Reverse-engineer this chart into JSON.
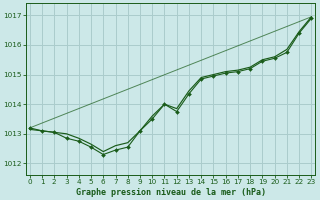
{
  "title": "Graphe pression niveau de la mer (hPa)",
  "bg_color": "#cce8e8",
  "grid_color": "#aacccc",
  "line_color": "#1a5c1a",
  "x_ticks": [
    0,
    1,
    2,
    3,
    4,
    5,
    6,
    7,
    8,
    9,
    10,
    11,
    12,
    13,
    14,
    15,
    16,
    17,
    18,
    19,
    20,
    21,
    22,
    23
  ],
  "y_ticks": [
    1012,
    1013,
    1014,
    1015,
    1016,
    1017
  ],
  "ylim": [
    1011.6,
    1017.4
  ],
  "xlim": [
    -0.3,
    23.3
  ],
  "series1_x": [
    0,
    1,
    2,
    3,
    4,
    5,
    6,
    7,
    8,
    9,
    10,
    11,
    12,
    13,
    14,
    15,
    16,
    17,
    18,
    19,
    20,
    21,
    22,
    23
  ],
  "series1_y": [
    1013.15,
    1013.1,
    1013.05,
    1013.0,
    1012.85,
    1012.65,
    1012.4,
    1012.6,
    1012.7,
    1013.1,
    1013.6,
    1014.0,
    1013.85,
    1014.45,
    1014.9,
    1015.0,
    1015.1,
    1015.15,
    1015.25,
    1015.5,
    1015.6,
    1015.85,
    1016.45,
    1016.95
  ],
  "series2_x": [
    0,
    1,
    2,
    3,
    4,
    5,
    6,
    7,
    8,
    9,
    10,
    11,
    12,
    13,
    14,
    15,
    16,
    17,
    18,
    19,
    20,
    21,
    22,
    23
  ],
  "series2_y": [
    1013.2,
    1013.1,
    1013.05,
    1012.85,
    1012.75,
    1012.55,
    1012.3,
    1012.45,
    1012.55,
    1013.1,
    1013.5,
    1014.0,
    1013.75,
    1014.35,
    1014.85,
    1014.95,
    1015.05,
    1015.1,
    1015.2,
    1015.45,
    1015.55,
    1015.75,
    1016.4,
    1016.9
  ],
  "series3_x": [
    0,
    23
  ],
  "series3_y": [
    1013.2,
    1016.95
  ],
  "title_fontsize": 6.0,
  "tick_fontsize": 5.2
}
